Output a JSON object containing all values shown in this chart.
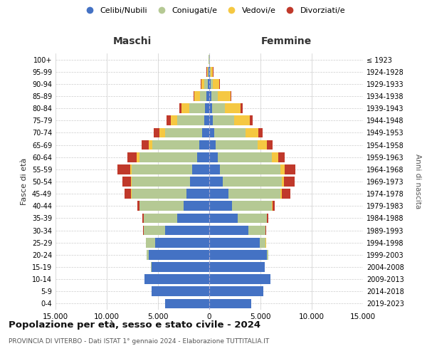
{
  "age_groups": [
    "0-4",
    "5-9",
    "10-14",
    "15-19",
    "20-24",
    "25-29",
    "30-34",
    "35-39",
    "40-44",
    "45-49",
    "50-54",
    "55-59",
    "60-64",
    "65-69",
    "70-74",
    "75-79",
    "80-84",
    "85-89",
    "90-94",
    "95-99",
    "100+"
  ],
  "birth_years": [
    "2019-2023",
    "2014-2018",
    "2009-2013",
    "2004-2008",
    "1999-2003",
    "1994-1998",
    "1989-1993",
    "1984-1988",
    "1979-1983",
    "1974-1978",
    "1969-1973",
    "1964-1968",
    "1959-1963",
    "1954-1958",
    "1949-1953",
    "1944-1948",
    "1939-1943",
    "1934-1938",
    "1929-1933",
    "1924-1928",
    "≤ 1923"
  ],
  "colors": {
    "celibi": "#4472c4",
    "coniugati": "#b5c994",
    "vedovi": "#f5c842",
    "divorziati": "#c0392b"
  },
  "males_celibi": [
    4300,
    5600,
    6300,
    5650,
    5900,
    5300,
    4300,
    3100,
    2500,
    2250,
    1850,
    1650,
    1200,
    950,
    720,
    520,
    420,
    280,
    150,
    90,
    30
  ],
  "males_coniugati": [
    0,
    0,
    0,
    20,
    210,
    850,
    2100,
    3300,
    4300,
    5300,
    5700,
    5900,
    5600,
    4600,
    3600,
    2600,
    1550,
    650,
    320,
    60,
    20
  ],
  "males_vedovi": [
    0,
    0,
    0,
    5,
    5,
    5,
    6,
    12,
    32,
    65,
    105,
    155,
    260,
    360,
    510,
    620,
    720,
    520,
    310,
    85,
    10
  ],
  "males_divorziati": [
    0,
    0,
    0,
    5,
    12,
    22,
    52,
    105,
    210,
    620,
    820,
    1230,
    920,
    720,
    620,
    410,
    210,
    105,
    52,
    20,
    5
  ],
  "females_celibi": [
    4100,
    5300,
    6000,
    5400,
    5600,
    4900,
    3850,
    2750,
    2250,
    1850,
    1350,
    1050,
    820,
    620,
    460,
    360,
    290,
    190,
    130,
    90,
    30
  ],
  "females_coniugati": [
    0,
    0,
    0,
    10,
    155,
    620,
    1650,
    2850,
    3850,
    5100,
    5700,
    5900,
    5300,
    4100,
    3100,
    2050,
    1250,
    620,
    210,
    60,
    10
  ],
  "females_vedovi": [
    0,
    0,
    0,
    5,
    5,
    6,
    12,
    42,
    82,
    155,
    260,
    410,
    620,
    920,
    1250,
    1550,
    1550,
    1250,
    620,
    210,
    30
  ],
  "females_divorziati": [
    0,
    0,
    0,
    5,
    12,
    22,
    52,
    105,
    210,
    820,
    1050,
    1050,
    620,
    510,
    410,
    260,
    155,
    105,
    52,
    22,
    5
  ],
  "xlim": 15000,
  "xticks": [
    -15000,
    -10000,
    -5000,
    0,
    5000,
    10000,
    15000
  ],
  "title": "Popolazione per età, sesso e stato civile - 2024",
  "subtitle": "PROVINCIA DI VITERBO - Dati ISTAT 1° gennaio 2024 - Elaborazione TUTTITALIA.IT",
  "xlabel_left": "Maschi",
  "xlabel_right": "Femmine",
  "ylabel": "Fasce di età",
  "ylabel_right": "Anni di nascita",
  "legend_labels": [
    "Celibi/Nubili",
    "Coniugati/e",
    "Vedovi/e",
    "Divorziati/e"
  ],
  "background_color": "#ffffff",
  "grid_color": "#cccccc",
  "bar_height": 0.8
}
